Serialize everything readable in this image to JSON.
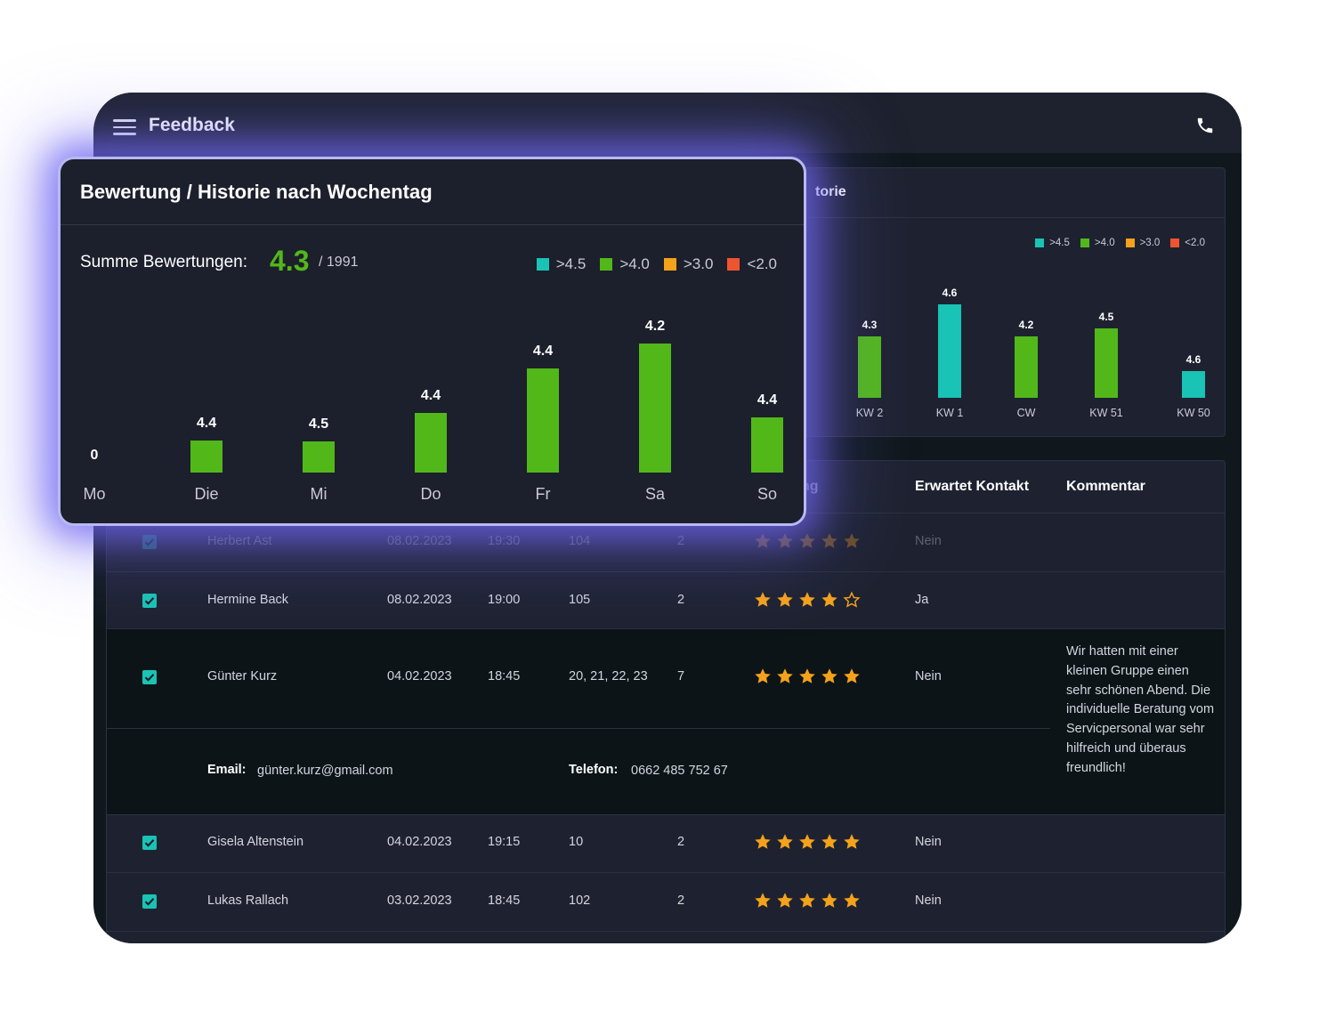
{
  "app": {
    "title": "Feedback"
  },
  "colors": {
    "gt45": "#19c3b5",
    "gt40": "#52b81a",
    "gt30": "#f4a21b",
    "lt20": "#ef5430",
    "star": "#f4a21b"
  },
  "legend": [
    {
      "label": ">4.5",
      "color": "#19c3b5"
    },
    {
      "label": ">4.0",
      "color": "#52b81a"
    },
    {
      "label": ">3.0",
      "color": "#f4a21b"
    },
    {
      "label": "<2.0",
      "color": "#ef5430"
    }
  ],
  "week_card": {
    "title_visible": "torie"
  },
  "popup": {
    "title": "Bewertung / Historie nach Wochentag",
    "summary_label": "Summe Bewertungen:",
    "summary_score": "4.3",
    "summary_total": "/ 1991"
  },
  "chart_data": [
    {
      "type": "bar",
      "title": "Bewertung / Historie nach Wochentag",
      "categories": [
        "Mo",
        "Die",
        "Mi",
        "Do",
        "Fr",
        "Sa",
        "So"
      ],
      "values": [
        0,
        4.4,
        4.5,
        4.4,
        4.4,
        4.2,
        4.4
      ],
      "value_labels": [
        "0",
        "4.4",
        "4.5",
        "4.4",
        "4.4",
        "4.2",
        "4.4"
      ],
      "relative_volume": [
        0,
        0.25,
        0.24,
        0.46,
        0.81,
        1.0,
        0.43
      ],
      "bar_colors": [
        "#52b81a",
        "#52b81a",
        "#52b81a",
        "#52b81a",
        "#52b81a",
        "#52b81a",
        "#52b81a"
      ],
      "legend": [
        ">4.5",
        ">4.0",
        ">3.0",
        "<2.0"
      ]
    },
    {
      "type": "bar",
      "categories": [
        "KW 2",
        "KW 1",
        "CW",
        "KW 51",
        "KW 50"
      ],
      "values": [
        4.3,
        4.6,
        4.2,
        4.5,
        4.6
      ],
      "value_labels": [
        "4.3",
        "4.6",
        "4.2",
        "4.5",
        "4.6"
      ],
      "relative_volume": [
        0.66,
        1.0,
        0.66,
        0.74,
        0.29
      ],
      "bar_colors": [
        "#52b81a",
        "#19c3b5",
        "#52b81a",
        "#52b81a",
        "#19c3b5"
      ],
      "legend": [
        ">4.5",
        ">4.0",
        ">3.0",
        "<2.0"
      ]
    }
  ],
  "table": {
    "headers": {
      "partial": "ng",
      "contact": "Erwartet Kontakt",
      "comment": "Kommentar"
    },
    "rows": [
      {
        "name": "Herbert Ast",
        "date": "08.02.2023",
        "time": "19:30",
        "table": "104",
        "guests": "2",
        "stars": 5,
        "contact": "Nein"
      },
      {
        "name": "Hermine Back",
        "date": "08.02.2023",
        "time": "19:00",
        "table": "105",
        "guests": "2",
        "stars": 4,
        "contact": "Ja"
      },
      {
        "name": "Günter  Kurz",
        "date": "04.02.2023",
        "time": "18:45",
        "table": "20, 21, 22, 23",
        "guests": "7",
        "stars": 5,
        "contact": "Nein",
        "comment": "Wir hatten mit einer kleinen Gruppe einen sehr schönen Abend. Die individuelle Beratung vom Servicpersonal war sehr hilfreich und überaus freundlich!",
        "email_label": "Email:",
        "email": "günter.kurz@gmail.com",
        "phone_label": "Telefon:",
        "phone": "0662 485 752 67"
      },
      {
        "name": "Gisela Altenstein",
        "date": "04.02.2023",
        "time": "19:15",
        "table": "10",
        "guests": "2",
        "stars": 5,
        "contact": "Nein"
      },
      {
        "name": "Lukas Rallach",
        "date": "03.02.2023",
        "time": "18:45",
        "table": "102",
        "guests": "2",
        "stars": 5,
        "contact": "Nein"
      }
    ]
  }
}
